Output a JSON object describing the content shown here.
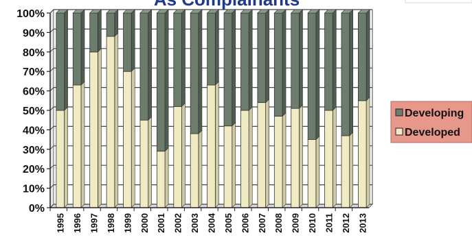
{
  "chart_data": {
    "type": "bar",
    "stacked": true,
    "percent": true,
    "title": "As Complainants",
    "categories": [
      "1995",
      "1996",
      "1997",
      "1998",
      "1999",
      "2000",
      "2001",
      "2002",
      "2003",
      "2004",
      "2005",
      "2006",
      "2007",
      "2008",
      "2009",
      "2010",
      "2011",
      "2012",
      "2013"
    ],
    "series": [
      {
        "name": "Developed",
        "color": "#f1ebc4",
        "values": [
          50,
          63,
          80,
          88,
          70,
          45,
          29,
          52,
          38,
          63,
          42,
          50,
          54,
          47,
          51,
          35,
          50,
          37,
          55
        ]
      },
      {
        "name": "Developing",
        "color": "#6c7d6e",
        "values": [
          50,
          37,
          20,
          12,
          30,
          55,
          71,
          48,
          62,
          37,
          58,
          50,
          46,
          53,
          49,
          65,
          50,
          63,
          45
        ]
      }
    ],
    "y_ticks": [
      "0%",
      "10%",
      "20%",
      "30%",
      "40%",
      "50%",
      "60%",
      "70%",
      "80%",
      "90%",
      "100%"
    ],
    "ylim": [
      0,
      100
    ],
    "grid": true,
    "legend": {
      "placement": "right",
      "background": "#e8978b",
      "entries": [
        {
          "label": "Developing",
          "color": "#6c7d6e"
        },
        {
          "label": "Developed",
          "color": "#f1ebc4"
        }
      ]
    }
  }
}
